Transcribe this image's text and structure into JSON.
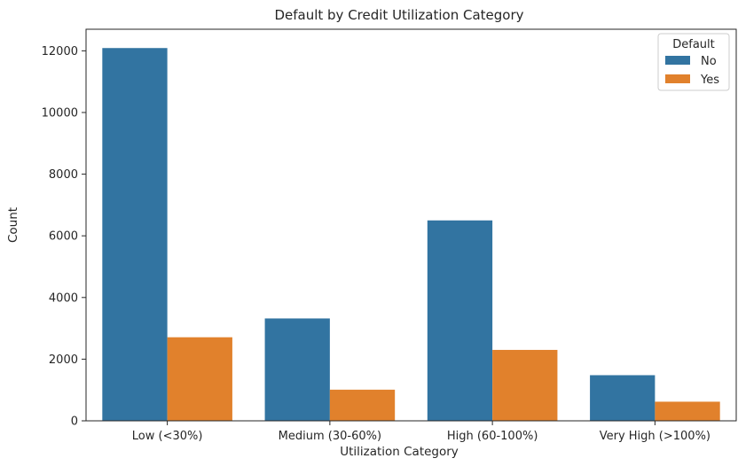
{
  "chart_data": {
    "type": "bar",
    "title": "Default by Credit Utilization Category",
    "xlabel": "Utilization Category",
    "ylabel": "Count",
    "categories": [
      "Low (<30%)",
      "Medium (30-60%)",
      "High (60-100%)",
      "Very High (>100%)"
    ],
    "series": [
      {
        "name": "No",
        "color": "#3274a1",
        "values": [
          12090,
          3320,
          6500,
          1480
        ]
      },
      {
        "name": "Yes",
        "color": "#e1812c",
        "values": [
          2710,
          1010,
          2300,
          620
        ]
      }
    ],
    "ylim": [
      0,
      12700
    ],
    "yticks": [
      0,
      2000,
      4000,
      6000,
      8000,
      10000,
      12000
    ],
    "ytick_labels": [
      "0",
      "2000",
      "4000",
      "6000",
      "8000",
      "10000",
      "12000"
    ],
    "grid": false,
    "legend": {
      "title": "Default",
      "placement": "top-right"
    }
  }
}
